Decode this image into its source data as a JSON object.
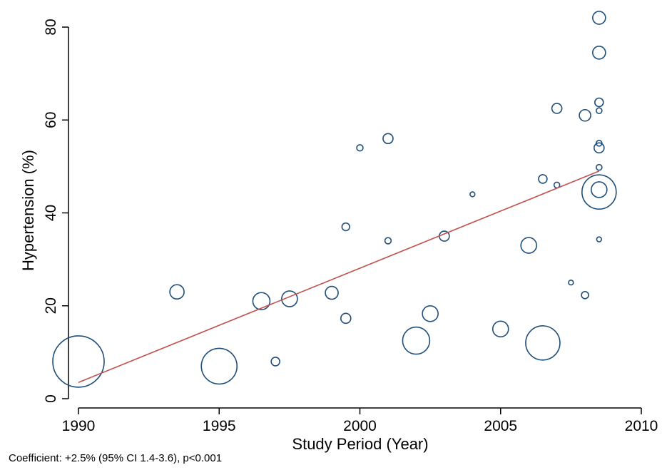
{
  "chart_data": {
    "type": "scatter",
    "xlabel": "Study Period (Year)",
    "ylabel": "Hypertension (%)",
    "xlim": [
      1990,
      2010
    ],
    "ylim": [
      0,
      80
    ],
    "xticks": [
      1990,
      1995,
      2000,
      2005,
      2010
    ],
    "yticks": [
      0,
      20,
      40,
      60,
      80
    ],
    "grid": false,
    "colors": {
      "marker": "#1f4e79",
      "fit_line": "#c0504d",
      "axis": "#000000"
    },
    "points": [
      {
        "x": 1990.0,
        "y": 8.0,
        "weight": 1.8
      },
      {
        "x": 1993.5,
        "y": 23.0,
        "weight": 0.5
      },
      {
        "x": 1995.0,
        "y": 7.0,
        "weight": 1.25
      },
      {
        "x": 1996.5,
        "y": 21.0,
        "weight": 0.6
      },
      {
        "x": 1997.0,
        "y": 8.0,
        "weight": 0.3
      },
      {
        "x": 1997.5,
        "y": 21.5,
        "weight": 0.55
      },
      {
        "x": 1999.0,
        "y": 22.8,
        "weight": 0.45
      },
      {
        "x": 1999.5,
        "y": 17.3,
        "weight": 0.35
      },
      {
        "x": 1999.5,
        "y": 37.0,
        "weight": 0.27
      },
      {
        "x": 2000.0,
        "y": 54.0,
        "weight": 0.22
      },
      {
        "x": 2001.0,
        "y": 56.0,
        "weight": 0.35
      },
      {
        "x": 2001.0,
        "y": 34.0,
        "weight": 0.22
      },
      {
        "x": 2002.0,
        "y": 12.5,
        "weight": 0.95
      },
      {
        "x": 2002.5,
        "y": 18.3,
        "weight": 0.55
      },
      {
        "x": 2003.0,
        "y": 35.0,
        "weight": 0.35
      },
      {
        "x": 2004.0,
        "y": 44.0,
        "weight": 0.17
      },
      {
        "x": 2005.0,
        "y": 15.0,
        "weight": 0.55
      },
      {
        "x": 2006.0,
        "y": 33.0,
        "weight": 0.55
      },
      {
        "x": 2006.5,
        "y": 12.0,
        "weight": 1.2
      },
      {
        "x": 2006.5,
        "y": 47.3,
        "weight": 0.3
      },
      {
        "x": 2007.0,
        "y": 62.5,
        "weight": 0.35
      },
      {
        "x": 2007.0,
        "y": 46.0,
        "weight": 0.2
      },
      {
        "x": 2007.5,
        "y": 25.0,
        "weight": 0.17
      },
      {
        "x": 2008.0,
        "y": 61.0,
        "weight": 0.4
      },
      {
        "x": 2008.0,
        "y": 22.3,
        "weight": 0.25
      },
      {
        "x": 2008.5,
        "y": 82.0,
        "weight": 0.45
      },
      {
        "x": 2008.5,
        "y": 74.5,
        "weight": 0.45
      },
      {
        "x": 2008.5,
        "y": 63.8,
        "weight": 0.3
      },
      {
        "x": 2008.5,
        "y": 62.0,
        "weight": 0.2
      },
      {
        "x": 2008.5,
        "y": 55.0,
        "weight": 0.2
      },
      {
        "x": 2008.5,
        "y": 54.0,
        "weight": 0.35
      },
      {
        "x": 2008.5,
        "y": 49.8,
        "weight": 0.2
      },
      {
        "x": 2008.5,
        "y": 45.0,
        "weight": 0.55
      },
      {
        "x": 2008.5,
        "y": 44.5,
        "weight": 1.2
      },
      {
        "x": 2008.5,
        "y": 34.3,
        "weight": 0.17
      }
    ],
    "fit_line": {
      "x": [
        1990.0,
        2008.5
      ],
      "y": [
        3.5,
        49.0
      ]
    },
    "annotation": "Coefficient: +2.5% (95% CI 1.4-3.6), p<0.001"
  }
}
